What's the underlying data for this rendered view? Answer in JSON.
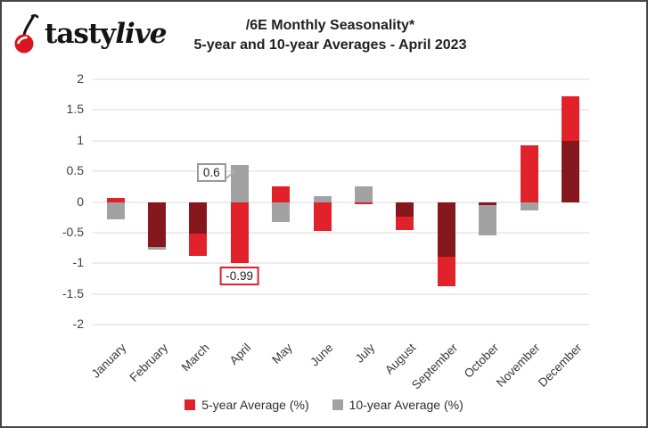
{
  "logo": {
    "brand_first": "tasty",
    "brand_second": "live",
    "cherry_color": "#d8161f",
    "stem_color": "#111111"
  },
  "header": {
    "title": "/6E Monthly Seasonality*",
    "subtitle": "5-year and 10-year Averages  - April 2023"
  },
  "chart_data": {
    "type": "bar",
    "title": "/6E Monthly Seasonality*",
    "subtitle": "5-year and 10-year Averages - April 2023",
    "categories": [
      "January",
      "February",
      "March",
      "April",
      "May",
      "June",
      "July",
      "August",
      "September",
      "October",
      "November",
      "December"
    ],
    "series": [
      {
        "name": "5-year Average (%)",
        "color": "#e2222a",
        "values": [
          0.07,
          -0.74,
          -0.88,
          -0.99,
          0.26,
          -0.47,
          -0.04,
          -0.46,
          -1.38,
          -0.05,
          0.93,
          1.73
        ]
      },
      {
        "name": "10-year Average (%)",
        "color": "#a2a2a2",
        "values": [
          -0.29,
          -0.78,
          -0.52,
          0.6,
          -0.33,
          0.09,
          0.25,
          -0.24,
          -0.9,
          -0.55,
          -0.14,
          1.0
        ]
      }
    ],
    "overlap_color": "#86171c",
    "ylim": [
      -2,
      2
    ],
    "yticks": [
      "2",
      "1.5",
      "1",
      "0.5",
      "0",
      "-0.5",
      "-1",
      "-1.5",
      "-2"
    ],
    "ytick_values": [
      2,
      1.5,
      1,
      0.5,
      0,
      -0.5,
      -1,
      -1.5,
      -2
    ],
    "grid": true,
    "gridline_color": "#ececec",
    "legend_position": "bottom",
    "xlabel": "",
    "ylabel": "",
    "annotations": [
      {
        "text": "0.6",
        "category": "April",
        "series": "10-year Average (%)",
        "value": 0.6,
        "border_color": "#999999",
        "placement": "left-of-bar"
      },
      {
        "text": "-0.99",
        "category": "April",
        "series": "5-year Average (%)",
        "value": -0.99,
        "border_color": "#e2222a",
        "placement": "below-bar"
      }
    ]
  }
}
